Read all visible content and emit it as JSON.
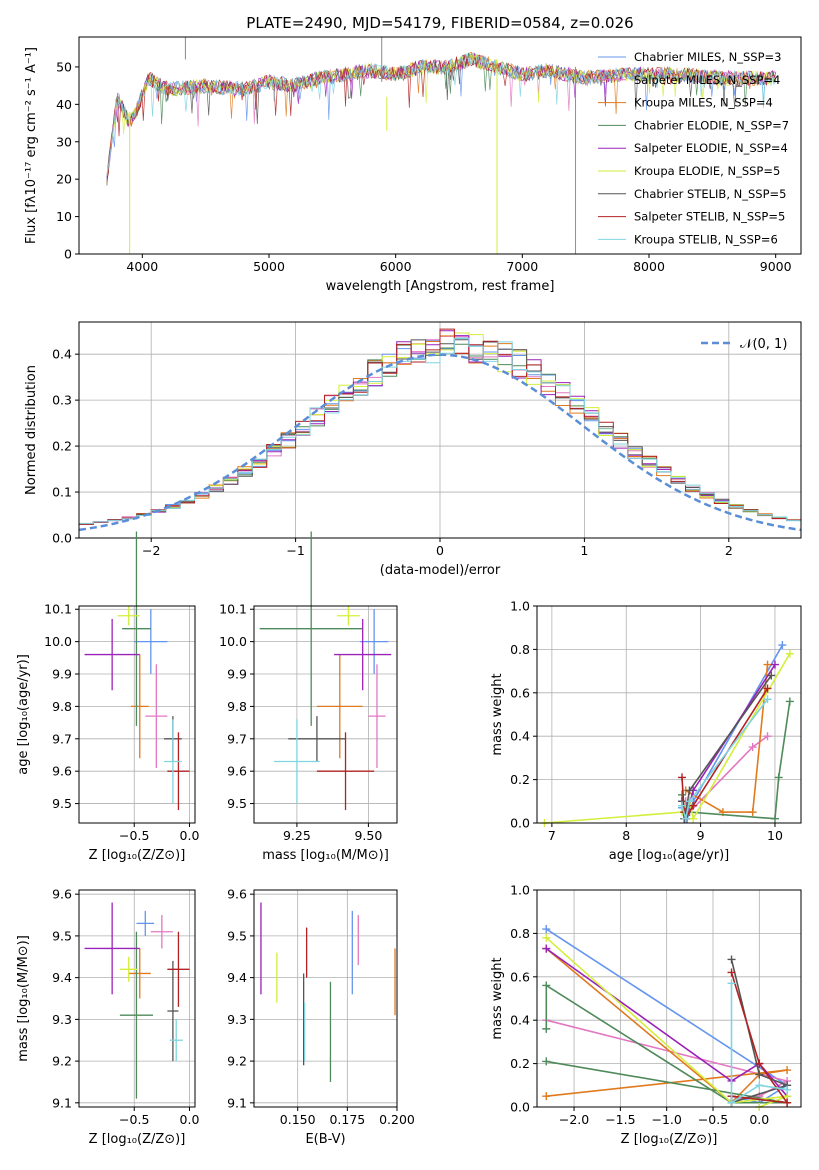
{
  "title": "PLATE=2490, MJD=54179, FIBERID=0584, z=0.026",
  "spectrum": {
    "xlabel": "wavelength [Angstrom, rest frame]",
    "ylabel": "Flux [fλ10⁻¹⁷ erg cm⁻² s⁻¹ A⁻¹]",
    "xticks": [
      "4000",
      "5000",
      "6000",
      "7000",
      "8000",
      "9000"
    ],
    "yticks": [
      "0",
      "10",
      "20",
      "30",
      "40",
      "50"
    ],
    "legend": [
      "Chabrier MILES, N_SSP=3",
      "Salpeter MILES, N_SSP=4",
      "Kroupa MILES, N_SSP=4",
      "Chabrier ELODIE, N_SSP=7",
      "Salpeter ELODIE, N_SSP=4",
      "Kroupa ELODIE, N_SSP=5",
      "Chabrier STELIB, N_SSP=5",
      "Salpeter STELIB, N_SSP=5",
      "Kroupa STELIB, N_SSP=6"
    ]
  },
  "residuals": {
    "xlabel": "(data-model)/error",
    "ylabel": "Normed distribution",
    "xticks": [
      "−2",
      "−1",
      "0",
      "1",
      "2"
    ],
    "yticks": [
      "0.0",
      "0.1",
      "0.2",
      "0.3",
      "0.4"
    ],
    "legend": "𝒩(0, 1)"
  },
  "p3": {
    "xlabel": "Z [log₁₀(Z/Z⊙)]",
    "ylabel": "age  [log₁₀(age/yr)]",
    "xticks": [
      "−0.5",
      "0.0"
    ],
    "yticks": [
      "9.5",
      "9.6",
      "9.7",
      "9.8",
      "9.9",
      "10.0",
      "10.1"
    ]
  },
  "p4": {
    "xlabel": "mass [log₁₀(M/M⊙)]",
    "xticks": [
      "9.25",
      "9.50"
    ],
    "yticks": [
      "9.5",
      "9.6",
      "9.7",
      "9.8",
      "9.9",
      "10.0",
      "10.1"
    ]
  },
  "p5": {
    "xlabel": "age  [log₁₀(age/yr)]",
    "ylabel": "mass weight",
    "xticks": [
      "7",
      "8",
      "9",
      "10"
    ],
    "yticks": [
      "0.0",
      "0.2",
      "0.4",
      "0.6",
      "0.8",
      "1.0"
    ]
  },
  "p6": {
    "xlabel": "Z [log₁₀(Z/Z⊙)]",
    "ylabel": "mass [log₁₀(M/M⊙)]",
    "xticks": [
      "−0.5",
      "0.0"
    ],
    "yticks": [
      "9.1",
      "9.2",
      "9.3",
      "9.4",
      "9.5",
      "9.6"
    ]
  },
  "p7": {
    "xlabel": "E(B-V)",
    "xticks": [
      "0.150",
      "0.175",
      "0.200"
    ],
    "yticks": [
      "9.1",
      "9.2",
      "9.3",
      "9.4",
      "9.5",
      "9.6"
    ]
  },
  "p8": {
    "xlabel": "Z [log₁₀(Z/Z⊙)]",
    "ylabel": "mass weight",
    "xticks": [
      "−2.0",
      "−1.5",
      "−1.0",
      "−0.5",
      "0.0"
    ],
    "yticks": [
      "0.0",
      "0.2",
      "0.4",
      "0.6",
      "0.8",
      "1.0"
    ]
  },
  "colors": [
    "#6495ed",
    "#e377c2",
    "#e07a1f",
    "#4f8a5a",
    "#9b22b8",
    "#d4ee3c",
    "#555555",
    "#b22222",
    "#7fd4e0"
  ],
  "chart_data": [
    {
      "type": "line",
      "name": "spectrum",
      "xlim": [
        3500,
        9200
      ],
      "ylim": [
        0,
        58
      ],
      "series_shape": [
        [
          3720,
          20
        ],
        [
          3800,
          42
        ],
        [
          3900,
          35
        ],
        [
          3950,
          38
        ],
        [
          4050,
          47
        ],
        [
          4200,
          44
        ],
        [
          4500,
          45
        ],
        [
          4800,
          44
        ],
        [
          5000,
          46
        ],
        [
          5200,
          45
        ],
        [
          5400,
          47
        ],
        [
          5600,
          48
        ],
        [
          5800,
          49
        ],
        [
          6000,
          48
        ],
        [
          6200,
          50
        ],
        [
          6400,
          50
        ],
        [
          6600,
          52
        ],
        [
          6800,
          50
        ],
        [
          7000,
          48
        ],
        [
          7200,
          49
        ],
        [
          7500,
          47
        ],
        [
          7800,
          48
        ],
        [
          8200,
          48
        ],
        [
          8600,
          47
        ],
        [
          9000,
          47
        ]
      ]
    },
    {
      "type": "line",
      "name": "residual-hist",
      "xlim": [
        -2.5,
        2.5
      ],
      "ylim": [
        0,
        0.47
      ],
      "gaussian": {
        "mu": 0,
        "sigma": 1
      }
    },
    {
      "type": "scatter",
      "name": "Z-age",
      "xlim": [
        -1.0,
        0.05
      ],
      "ylim": [
        9.44,
        10.11
      ],
      "points": [
        {
          "x": -0.35,
          "y": 10.0,
          "xe": 0.15,
          "ye": 0.1
        },
        {
          "x": -0.3,
          "y": 9.77,
          "xe": 0.1,
          "ye": 0.16
        },
        {
          "x": -0.45,
          "y": 9.8,
          "xe": 0.08,
          "ye": 0.16
        },
        {
          "x": -0.48,
          "y": 10.04,
          "xe": 0.13,
          "ye": 0.3
        },
        {
          "x": -0.7,
          "y": 9.96,
          "xe": 0.25,
          "ye": 0.11
        },
        {
          "x": -0.55,
          "y": 10.08,
          "xe": 0.1,
          "ye": 0.03
        },
        {
          "x": -0.15,
          "y": 9.7,
          "xe": 0.08,
          "ye": 0.07
        },
        {
          "x": -0.1,
          "y": 9.6,
          "xe": 0.1,
          "ye": 0.12
        },
        {
          "x": -0.15,
          "y": 9.63,
          "xe": 0.08,
          "ye": 0.13
        }
      ]
    },
    {
      "type": "scatter",
      "name": "mass-age",
      "xlim": [
        9.1,
        9.6
      ],
      "ylim": [
        9.44,
        10.11
      ],
      "points": [
        {
          "x": 9.52,
          "y": 10.0,
          "xe": 0.05,
          "ye": 0.1
        },
        {
          "x": 9.53,
          "y": 9.77,
          "xe": 0.03,
          "ye": 0.16
        },
        {
          "x": 9.4,
          "y": 9.8,
          "xe": 0.08,
          "ye": 0.16
        },
        {
          "x": 9.3,
          "y": 10.04,
          "xe": 0.18,
          "ye": 0.3
        },
        {
          "x": 9.48,
          "y": 9.96,
          "xe": 0.1,
          "ye": 0.11
        },
        {
          "x": 9.43,
          "y": 10.08,
          "xe": 0.04,
          "ye": 0.03
        },
        {
          "x": 9.32,
          "y": 9.7,
          "xe": 0.1,
          "ye": 0.07
        },
        {
          "x": 9.42,
          "y": 9.6,
          "xe": 0.1,
          "ye": 0.12
        },
        {
          "x": 9.25,
          "y": 9.63,
          "xe": 0.08,
          "ye": 0.13
        }
      ]
    },
    {
      "type": "line",
      "name": "age-weight",
      "xlim": [
        6.8,
        10.35
      ],
      "ylim": [
        0,
        1
      ],
      "series": [
        {
          "x": [
            8.75,
            8.82,
            8.9,
            10.1
          ],
          "y": [
            0.07,
            0.02,
            0.1,
            0.82
          ]
        },
        {
          "x": [
            8.8,
            8.85,
            9.7,
            9.9
          ],
          "y": [
            0.1,
            0.05,
            0.35,
            0.4
          ]
        },
        {
          "x": [
            8.8,
            9.3,
            9.7,
            9.9
          ],
          "y": [
            0.15,
            0.05,
            0.05,
            0.73
          ]
        },
        {
          "x": [
            8.75,
            8.8,
            8.85,
            10.0,
            10.05,
            10.2
          ],
          "y": [
            0.13,
            0.02,
            0.05,
            0.02,
            0.21,
            0.56
          ]
        },
        {
          "x": [
            8.75,
            8.8,
            8.9,
            10.0
          ],
          "y": [
            0.1,
            0.02,
            0.15,
            0.73
          ]
        },
        {
          "x": [
            6.9,
            8.75,
            8.85,
            8.9,
            10.2
          ],
          "y": [
            0.0,
            0.05,
            0.1,
            0.02,
            0.78
          ]
        },
        {
          "x": [
            8.75,
            8.78,
            8.8,
            8.85,
            9.95
          ],
          "y": [
            0.1,
            0.02,
            0.05,
            0.15,
            0.68
          ]
        },
        {
          "x": [
            8.75,
            8.78,
            8.8,
            8.9,
            9.9
          ],
          "y": [
            0.21,
            0.05,
            0.02,
            0.08,
            0.62
          ]
        },
        {
          "x": [
            8.75,
            8.8,
            8.85,
            9.9
          ],
          "y": [
            0.08,
            0.02,
            0.1,
            0.57
          ]
        }
      ]
    },
    {
      "type": "scatter",
      "name": "Z-mass",
      "xlim": [
        -1.0,
        0.05
      ],
      "ylim": [
        9.09,
        9.61
      ],
      "points": [
        {
          "x": -0.4,
          "y": 9.53,
          "xe": 0.08,
          "ye": 0.03
        },
        {
          "x": -0.25,
          "y": 9.51,
          "xe": 0.1,
          "ye": 0.04
        },
        {
          "x": -0.45,
          "y": 9.41,
          "xe": 0.1,
          "ye": 0.06
        },
        {
          "x": -0.48,
          "y": 9.31,
          "xe": 0.15,
          "ye": 0.2
        },
        {
          "x": -0.7,
          "y": 9.47,
          "xe": 0.25,
          "ye": 0.11
        },
        {
          "x": -0.55,
          "y": 9.42,
          "xe": 0.08,
          "ye": 0.03
        },
        {
          "x": -0.15,
          "y": 9.32,
          "xe": 0.05,
          "ye": 0.12
        },
        {
          "x": -0.1,
          "y": 9.42,
          "xe": 0.1,
          "ye": 0.09
        },
        {
          "x": -0.12,
          "y": 9.25,
          "xe": 0.06,
          "ye": 0.05
        }
      ]
    },
    {
      "type": "scatter",
      "name": "EBV-mass",
      "xlim": [
        0.128,
        0.2
      ],
      "ylim": [
        9.09,
        9.61
      ],
      "points": [
        {
          "x": 0.1775,
          "y": 9.46,
          "ye": 0.1
        },
        {
          "x": 0.1805,
          "y": 9.49,
          "ye": 0.06
        },
        {
          "x": 0.199,
          "y": 9.39,
          "ye": 0.08
        },
        {
          "x": 0.1665,
          "y": 9.27,
          "ye": 0.12
        },
        {
          "x": 0.1315,
          "y": 9.47,
          "ye": 0.11
        },
        {
          "x": 0.1395,
          "y": 9.4,
          "ye": 0.06
        },
        {
          "x": 0.153,
          "y": 9.3,
          "ye": 0.11
        },
        {
          "x": 0.1545,
          "y": 9.46,
          "ye": 0.06
        },
        {
          "x": 0.1535,
          "y": 9.27,
          "ye": 0.07
        }
      ]
    },
    {
      "type": "line",
      "name": "Z-weight",
      "xlim": [
        -2.4,
        0.45
      ],
      "ylim": [
        0,
        1
      ],
      "series": [
        {
          "x": [
            -2.3,
            0.3,
            0.0,
            -0.3
          ],
          "y": [
            0.82,
            0.1,
            0.02,
            0.05
          ]
        },
        {
          "x": [
            -2.3,
            0.3,
            0.0,
            -0.3
          ],
          "y": [
            0.4,
            0.12,
            0.05,
            0.03
          ]
        },
        {
          "x": [
            -2.3,
            0.3,
            0.0,
            -0.3,
            -2.3
          ],
          "y": [
            0.05,
            0.17,
            0.15,
            0.02,
            0.73
          ]
        },
        {
          "x": [
            -2.3,
            0.3,
            -0.3,
            -2.3,
            -2.3
          ],
          "y": [
            0.21,
            0.02,
            0.02,
            0.56,
            0.36
          ]
        },
        {
          "x": [
            -2.3,
            -0.3,
            0.0,
            0.3
          ],
          "y": [
            0.73,
            0.12,
            0.2,
            0.05
          ]
        },
        {
          "x": [
            -2.3,
            -0.3,
            0.3,
            0.0
          ],
          "y": [
            0.78,
            0.02,
            0.05,
            0.0
          ]
        },
        {
          "x": [
            -0.3,
            0.0,
            0.3,
            -0.3
          ],
          "y": [
            0.68,
            0.15,
            0.1,
            0.02
          ]
        },
        {
          "x": [
            -0.3,
            0.0,
            0.3,
            -0.3
          ],
          "y": [
            0.62,
            0.2,
            0.02,
            0.05
          ]
        },
        {
          "x": [
            -0.3,
            -0.3,
            0.0,
            0.3
          ],
          "y": [
            0.57,
            0.02,
            0.1,
            0.08
          ]
        }
      ]
    }
  ]
}
